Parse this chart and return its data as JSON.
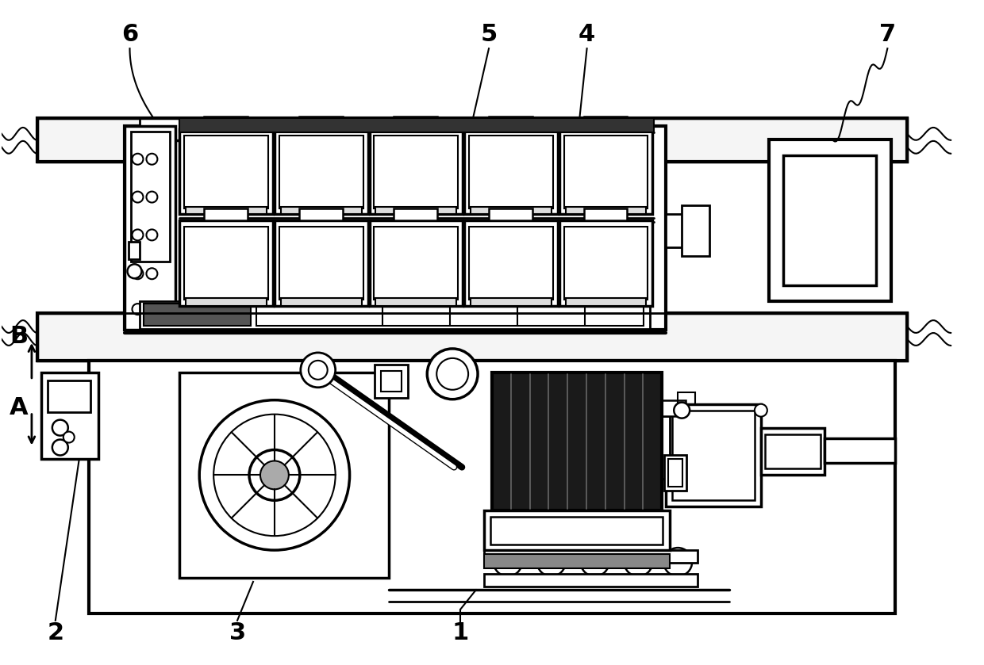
{
  "bg_color": "#ffffff",
  "line_color": "#000000",
  "fig_width": 12.4,
  "fig_height": 8.39,
  "dpi": 100
}
